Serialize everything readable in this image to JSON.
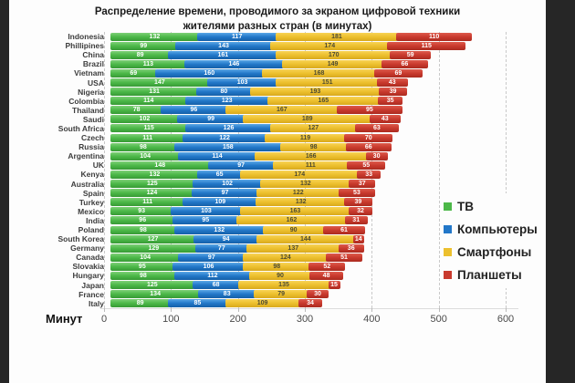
{
  "title": {
    "line1": "Распределение времени, проводимого за экраном цифровой техники",
    "line2": "жителями разных стран (в минутах)"
  },
  "axis": {
    "label": "Минут",
    "ticks": [
      0,
      100,
      200,
      300,
      400,
      500,
      600
    ],
    "max": 600
  },
  "legend": [
    {
      "label": "ТВ",
      "color": "#4cb848"
    },
    {
      "label": "Компьютеры",
      "color": "#2277c8"
    },
    {
      "label": "Смартфоны",
      "color": "#ecc02e"
    },
    {
      "label": "Планшеты",
      "color": "#c93a2e"
    }
  ],
  "chart_data": {
    "type": "bar",
    "stacked": true,
    "orientation": "horizontal",
    "title": "Распределение времени, проводимого за экраном цифровой техники жителями разных стран (в минутах)",
    "xlabel": "Минут",
    "xlim": [
      0,
      600
    ],
    "grid": "vertical-dashed",
    "legend_position": "right-middle",
    "categories": [
      "Indonesia",
      "Phillipines",
      "China",
      "Brazil",
      "Vietnam",
      "USA",
      "Nigeria",
      "Colombia",
      "Thailand",
      "Saudi",
      "South Africa",
      "Czech",
      "Russia",
      "Argentina",
      "UK",
      "Kenya",
      "Australia",
      "Spain",
      "Turkey",
      "Mexico",
      "India",
      "Poland",
      "South Korea",
      "Germany",
      "Canada",
      "Slovakia",
      "Hungary",
      "Japan",
      "France",
      "Italy"
    ],
    "series": [
      {
        "name": "ТВ",
        "color": "#4cb848",
        "values": [
          132,
          99,
          89,
          113,
          69,
          147,
          131,
          114,
          78,
          102,
          115,
          111,
          98,
          104,
          148,
          132,
          125,
          124,
          111,
          93,
          96,
          98,
          127,
          129,
          104,
          95,
          98,
          125,
          134,
          89
        ]
      },
      {
        "name": "Компьютеры",
        "color": "#2277c8",
        "values": [
          117,
          143,
          161,
          146,
          160,
          103,
          80,
          123,
          96,
          99,
          126,
          122,
          158,
          114,
          97,
          65,
          102,
          97,
          109,
          103,
          95,
          132,
          94,
          77,
          97,
          106,
          112,
          68,
          83,
          85
        ]
      },
      {
        "name": "Смартфоны",
        "color": "#ecc02e",
        "values": [
          181,
          174,
          170,
          149,
          168,
          151,
          193,
          165,
          167,
          189,
          127,
          119,
          98,
          166,
          111,
          174,
          132,
          122,
          132,
          163,
          162,
          90,
          144,
          137,
          124,
          98,
          90,
          135,
          79,
          109
        ]
      },
      {
        "name": "Планшеты",
        "color": "#c93a2e",
        "values": [
          110,
          115,
          59,
          66,
          69,
          43,
          39,
          35,
          95,
          43,
          63,
          70,
          66,
          30,
          55,
          33,
          37,
          53,
          39,
          32,
          31,
          61,
          14,
          36,
          51,
          52,
          48,
          15,
          30,
          34
        ]
      }
    ]
  }
}
